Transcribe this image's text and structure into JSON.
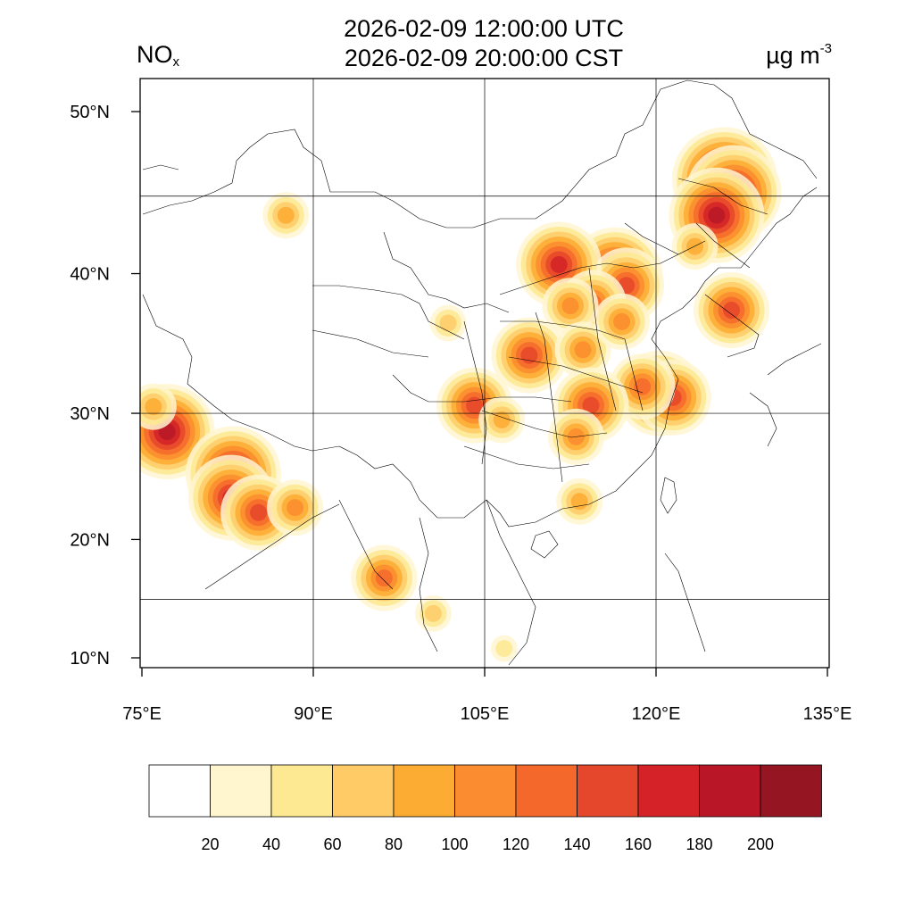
{
  "header": {
    "time_utc": "2026-02-09 12:00:00 UTC",
    "time_local": "2026-02-09 20:00:00 CST",
    "species_main": "NO",
    "species_sub": "x",
    "units_main": "µg m",
    "units_sup": "-3"
  },
  "map": {
    "lon_range": [
      75,
      135
    ],
    "lat_range": [
      9,
      52
    ],
    "lat_ticks": [
      {
        "value": 50,
        "label": "50°N"
      },
      {
        "value": 40,
        "label": "40°N"
      },
      {
        "value": 30,
        "label": "30°N"
      },
      {
        "value": 20,
        "label": "20°N"
      },
      {
        "value": 10,
        "label": "10°N"
      }
    ],
    "lon_ticks": [
      {
        "value": 75,
        "label": "75°E"
      },
      {
        "value": 90,
        "label": "90°E"
      },
      {
        "value": 105,
        "label": "105°E"
      },
      {
        "value": 120,
        "label": "120°E"
      },
      {
        "value": 135,
        "label": "135°E"
      }
    ],
    "grid_lons": [
      90,
      105,
      120
    ],
    "grid_lats": [
      45,
      30,
      15
    ],
    "hotspots": [
      {
        "lon": 126.0,
        "lat": 46.0,
        "value": 200
      },
      {
        "lon": 126.8,
        "lat": 45.2,
        "value": 180
      },
      {
        "lon": 125.3,
        "lat": 43.8,
        "value": 190
      },
      {
        "lon": 116.4,
        "lat": 39.9,
        "value": 190
      },
      {
        "lon": 117.4,
        "lat": 39.2,
        "value": 150
      },
      {
        "lon": 111.5,
        "lat": 40.6,
        "value": 170
      },
      {
        "lon": 114.5,
        "lat": 38.0,
        "value": 120
      },
      {
        "lon": 112.5,
        "lat": 37.8,
        "value": 110
      },
      {
        "lon": 108.9,
        "lat": 34.3,
        "value": 150
      },
      {
        "lon": 113.6,
        "lat": 34.7,
        "value": 110
      },
      {
        "lon": 117.0,
        "lat": 36.7,
        "value": 110
      },
      {
        "lon": 120.3,
        "lat": 31.5,
        "value": 170
      },
      {
        "lon": 121.5,
        "lat": 31.2,
        "value": 150
      },
      {
        "lon": 118.8,
        "lat": 32.0,
        "value": 120
      },
      {
        "lon": 114.3,
        "lat": 30.6,
        "value": 150
      },
      {
        "lon": 113.0,
        "lat": 28.2,
        "value": 110
      },
      {
        "lon": 104.1,
        "lat": 30.6,
        "value": 150
      },
      {
        "lon": 106.5,
        "lat": 29.5,
        "value": 90
      },
      {
        "lon": 113.3,
        "lat": 23.1,
        "value": 80
      },
      {
        "lon": 123.4,
        "lat": 41.8,
        "value": 90
      },
      {
        "lon": 126.6,
        "lat": 37.5,
        "value": 140
      },
      {
        "lon": 77.2,
        "lat": 28.6,
        "value": 180
      },
      {
        "lon": 83.0,
        "lat": 25.3,
        "value": 190
      },
      {
        "lon": 82.8,
        "lat": 23.4,
        "value": 160
      },
      {
        "lon": 85.2,
        "lat": 22.2,
        "value": 150
      },
      {
        "lon": 88.4,
        "lat": 22.6,
        "value": 110
      },
      {
        "lon": 76.0,
        "lat": 30.5,
        "value": 80
      },
      {
        "lon": 100.5,
        "lat": 13.8,
        "value": 60
      },
      {
        "lon": 106.7,
        "lat": 10.8,
        "value": 50
      },
      {
        "lon": 101.8,
        "lat": 36.6,
        "value": 70
      },
      {
        "lon": 87.6,
        "lat": 43.8,
        "value": 80
      },
      {
        "lon": 96.2,
        "lat": 16.8,
        "value": 120
      }
    ]
  },
  "colorbar": {
    "colors": [
      "#ffffff",
      "#fff6d0",
      "#fde991",
      "#fecb67",
      "#fdac33",
      "#fb8c2f",
      "#f4692b",
      "#e5472c",
      "#d42228",
      "#b91728",
      "#951622"
    ],
    "labels": [
      "20",
      "40",
      "60",
      "80",
      "100",
      "120",
      "140",
      "160",
      "180",
      "200"
    ]
  }
}
